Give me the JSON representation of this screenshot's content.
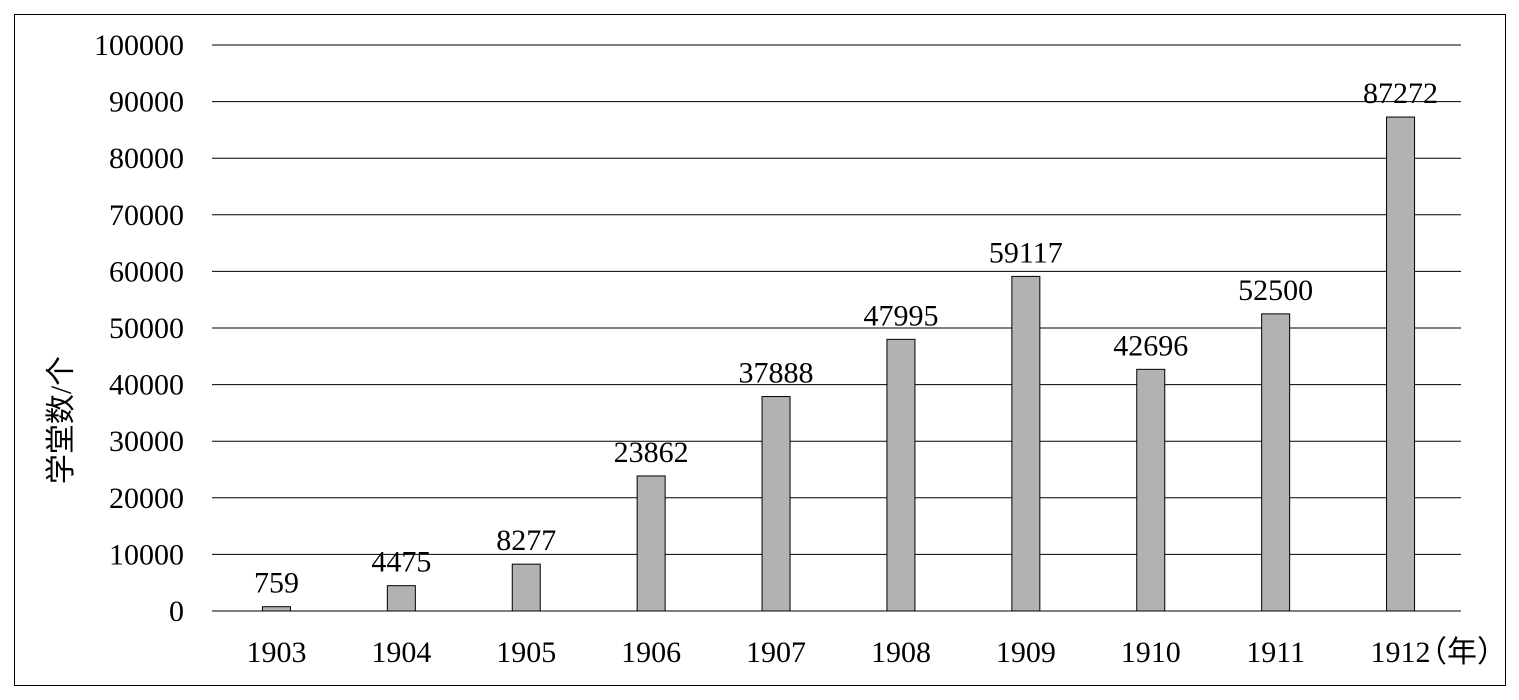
{
  "chart_data": {
    "type": "bar",
    "title": "",
    "xlabel": "",
    "x_unit": "（年）",
    "ylabel": "学堂数/个",
    "categories": [
      "1903",
      "1904",
      "1905",
      "1906",
      "1907",
      "1908",
      "1909",
      "1910",
      "1911",
      "1912"
    ],
    "values": [
      759,
      4475,
      8277,
      23862,
      37888,
      47995,
      59117,
      42696,
      52500,
      87272
    ],
    "data_labels": [
      "759",
      "4475",
      "8277",
      "23862",
      "37888",
      "47995",
      "59117",
      "42696",
      "52500",
      "87272"
    ],
    "ylim": [
      0,
      100000
    ],
    "yticks": [
      "0",
      "10000",
      "20000",
      "30000",
      "40000",
      "50000",
      "60000",
      "70000",
      "80000",
      "90000",
      "100000"
    ],
    "grid": true,
    "bar_color": "#b2b2b2"
  }
}
